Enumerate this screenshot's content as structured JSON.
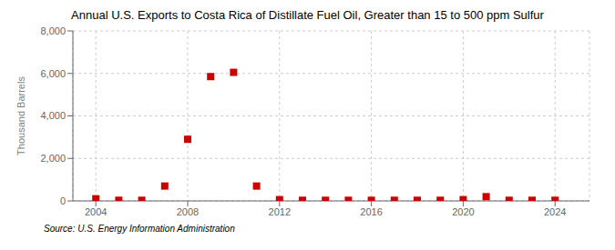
{
  "chart_data": {
    "type": "scatter",
    "title": "Annual U.S. Exports to Costa Rica of Distillate Fuel Oil, Greater than 15 to 500 ppm Sulfur",
    "ylabel": "Thousand Barrels",
    "annotations": [
      "Source: U.S. Energy Information Administration"
    ],
    "x": [
      2004,
      2005,
      2006,
      2007,
      2008,
      2009,
      2010,
      2011,
      2012,
      2013,
      2014,
      2015,
      2016,
      2017,
      2018,
      2019,
      2020,
      2021,
      2022,
      2023,
      2024
    ],
    "values": [
      100,
      30,
      30,
      700,
      2900,
      5850,
      6050,
      700,
      60,
      30,
      30,
      30,
      30,
      30,
      30,
      30,
      60,
      200,
      30,
      30,
      30
    ],
    "color": "#cc0000",
    "marker": "square",
    "xlim": [
      2003.0,
      2025.5
    ],
    "ylim": [
      0,
      8000
    ],
    "xticks": [
      2004,
      2008,
      2012,
      2016,
      2020,
      2024
    ],
    "yticks": [
      0,
      {
        "value": 2000,
        "label": "2,000"
      },
      {
        "value": 4000,
        "label": "4,000"
      },
      {
        "value": 6000,
        "label": "6,000"
      },
      {
        "value": 8000,
        "label": "8,000"
      }
    ],
    "grid": true
  }
}
